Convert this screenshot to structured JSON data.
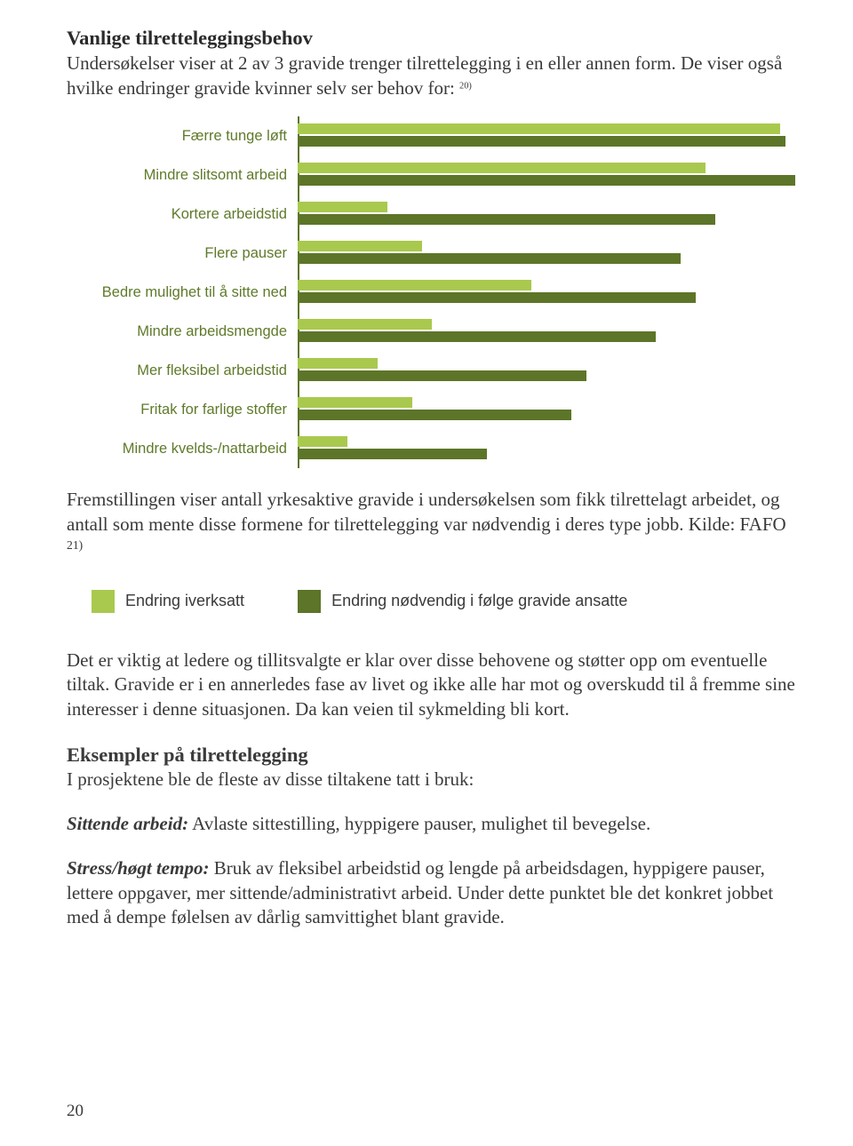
{
  "headings": {
    "h1": "Vanlige tilretteleggingsbehov",
    "h2": "Eksempler på tilrettelegging"
  },
  "intro": {
    "p1a": "Undersøkelser viser at 2 av 3 gravide trenger tilrettelegging i en eller annen form. De viser også hvilke endringer gravide kvinner selv ser behov for: ",
    "p1ref": "20)"
  },
  "chart": {
    "type": "bar",
    "bar_color_light": "#a9c94e",
    "bar_color_dark": "#5d7528",
    "axis_color": "#5d7528",
    "label_color": "#5f7a2a",
    "label_fontsize": 16.5,
    "max_value": 100,
    "rows": [
      {
        "label": "Færre tunge løft",
        "light": 97,
        "dark": 98
      },
      {
        "label": "Mindre slitsomt arbeid",
        "light": 82,
        "dark": 100
      },
      {
        "label": "Kortere arbeidstid",
        "light": 18,
        "dark": 84
      },
      {
        "label": "Flere pauser",
        "light": 25,
        "dark": 77
      },
      {
        "label": "Bedre mulighet til å sitte ned",
        "light": 47,
        "dark": 80
      },
      {
        "label": "Mindre arbeidsmengde",
        "light": 27,
        "dark": 72
      },
      {
        "label": "Mer fleksibel arbeidstid",
        "light": 16,
        "dark": 58
      },
      {
        "label": "Fritak for farlige stoffer",
        "light": 23,
        "dark": 55
      },
      {
        "label": "Mindre kvelds-/nattarbeid",
        "light": 10,
        "dark": 38
      }
    ]
  },
  "after_chart": {
    "p1a": "Fremstillingen viser antall yrkesaktive gravide i undersøkelsen som fikk tilrettelagt arbeidet, og antall som mente disse formene for tilrettelegging var nødvendig i deres type jobb. Kilde: FAFO ",
    "p1ref": "21)"
  },
  "legend": {
    "item1": "Endring iverksatt",
    "item2": "Endring nødvendig i følge gravide ansatte"
  },
  "body": {
    "p2": "Det er viktig at ledere og tillitsvalgte er klar over disse behovene og støtter opp om eventuelle tiltak. Gravide er i en annerledes fase av livet og ikke alle har mot og overskudd til å fremme sine interesser i denne situasjonen. Da kan veien til sykmelding bli kort.",
    "p3": "I prosjektene ble de fleste av disse tiltakene tatt i bruk:",
    "p4_lead": "Sittende arbeid:",
    "p4_rest": " Avlaste sittestilling, hyppigere pauser, mulighet til bevegelse.",
    "p5_lead": "Stress/høgt tempo:",
    "p5_rest": " Bruk av fleksibel arbeidstid og lengde på arbeidsdagen, hyppigere pauser, lettere oppgaver, mer sittende/administrativt arbeid. Under dette punktet ble det konkret jobbet med å dempe følelsen av dårlig samvit­tighet blant gravide."
  },
  "page_number": "20"
}
